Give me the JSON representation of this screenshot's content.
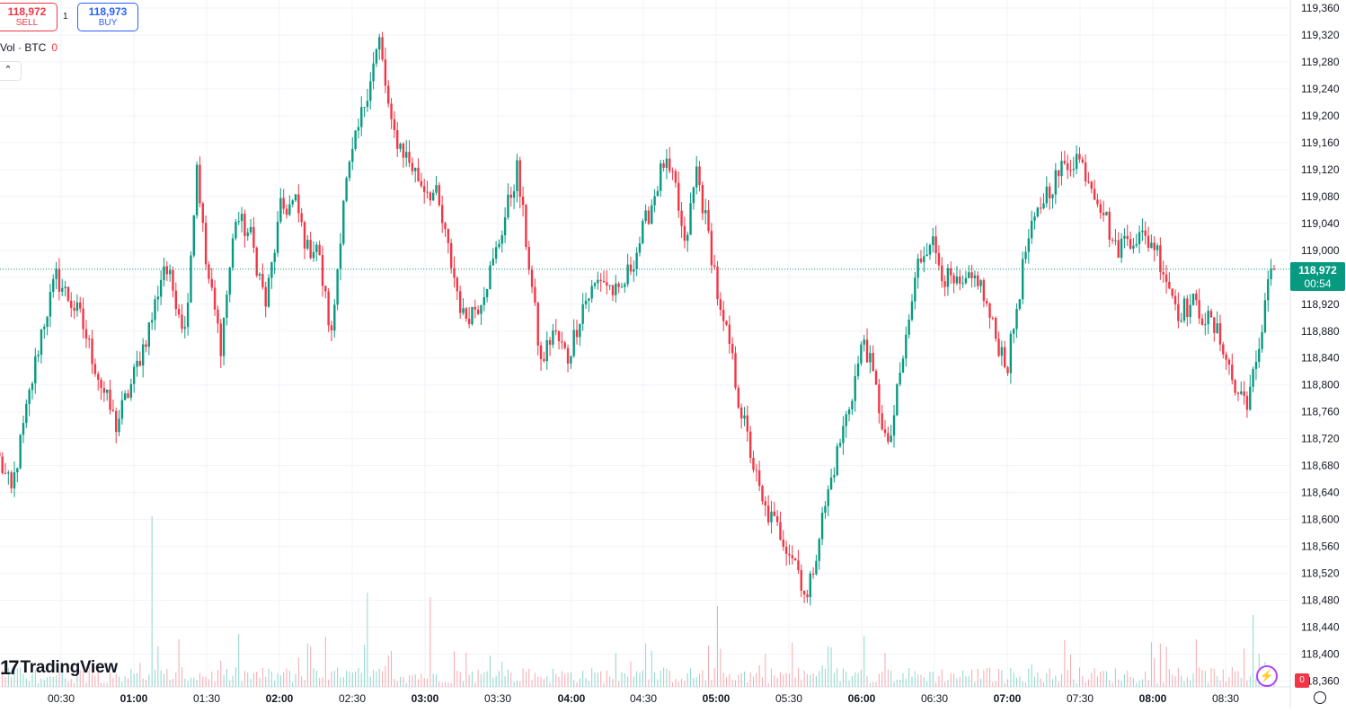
{
  "trade": {
    "sell_price": "118,972",
    "sell_label": "SELL",
    "buy_price": "118,973",
    "buy_label": "BUY",
    "spread": "1"
  },
  "volume_legend": {
    "label": "Vol · BTC",
    "value": "0"
  },
  "last_price": {
    "price": "118,972",
    "countdown": "00:54"
  },
  "branding": {
    "logo_text": "TradingView"
  },
  "volume_badge": "0",
  "colors": {
    "up": "#089981",
    "down": "#f23645",
    "up_volume": "#8fd6cc",
    "down_volume": "#f7a8ae",
    "grid": "#f0f3fa"
  },
  "chart_data": {
    "type": "candlestick",
    "interval": "1 minute",
    "y_axis_labels": [
      "119,360",
      "119,320",
      "119,280",
      "119,240",
      "119,200",
      "119,160",
      "119,120",
      "119,080",
      "119,040",
      "119,000",
      "118,960",
      "118,920",
      "118,880",
      "118,840",
      "118,800",
      "118,760",
      "118,720",
      "118,680",
      "118,640",
      "118,600",
      "118,560",
      "118,520",
      "118,480",
      "118,440",
      "118,400",
      "118,360"
    ],
    "ylim": [
      118360,
      119360
    ],
    "x_axis_labels": [
      {
        "label": "00:30",
        "bold": false
      },
      {
        "label": "01:00",
        "bold": true
      },
      {
        "label": "01:30",
        "bold": false
      },
      {
        "label": "02:00",
        "bold": true
      },
      {
        "label": "02:30",
        "bold": false
      },
      {
        "label": "03:00",
        "bold": true
      },
      {
        "label": "03:30",
        "bold": false
      },
      {
        "label": "04:00",
        "bold": true
      },
      {
        "label": "04:30",
        "bold": false
      },
      {
        "label": "05:00",
        "bold": true
      },
      {
        "label": "05:30",
        "bold": false
      },
      {
        "label": "06:00",
        "bold": true
      },
      {
        "label": "06:30",
        "bold": false
      },
      {
        "label": "07:00",
        "bold": true
      },
      {
        "label": "07:30",
        "bold": false
      },
      {
        "label": "08:00",
        "bold": true
      },
      {
        "label": "08:30",
        "bold": false
      }
    ],
    "last_price": 118972,
    "price_path": [
      [
        0,
        118700
      ],
      [
        5,
        118640
      ],
      [
        10,
        118760
      ],
      [
        15,
        118880
      ],
      [
        20,
        118960
      ],
      [
        28,
        118900
      ],
      [
        35,
        118800
      ],
      [
        40,
        118740
      ],
      [
        45,
        118800
      ],
      [
        52,
        118900
      ],
      [
        56,
        118980
      ],
      [
        60,
        118930
      ],
      [
        63,
        118880
      ],
      [
        66,
        119060
      ],
      [
        67,
        119130
      ],
      [
        70,
        118980
      ],
      [
        75,
        118860
      ],
      [
        80,
        119050
      ],
      [
        85,
        119020
      ],
      [
        90,
        118920
      ],
      [
        95,
        119060
      ],
      [
        100,
        119070
      ],
      [
        104,
        119000
      ],
      [
        107,
        119010
      ],
      [
        112,
        118870
      ],
      [
        116,
        119080
      ],
      [
        121,
        119180
      ],
      [
        125,
        119260
      ],
      [
        128,
        119310
      ],
      [
        132,
        119180
      ],
      [
        137,
        119140
      ],
      [
        142,
        119100
      ],
      [
        147,
        119080
      ],
      [
        151,
        119000
      ],
      [
        156,
        118900
      ],
      [
        161,
        118920
      ],
      [
        166,
        118980
      ],
      [
        170,
        119050
      ],
      [
        174,
        119120
      ],
      [
        178,
        118980
      ],
      [
        182,
        118830
      ],
      [
        186,
        118880
      ],
      [
        191,
        118840
      ],
      [
        196,
        118920
      ],
      [
        202,
        118960
      ],
      [
        208,
        118930
      ],
      [
        214,
        119000
      ],
      [
        219,
        119070
      ],
      [
        223,
        119130
      ],
      [
        227,
        119090
      ],
      [
        230,
        119000
      ],
      [
        234,
        119120
      ],
      [
        240,
        118970
      ],
      [
        242,
        118900
      ],
      [
        245,
        118860
      ],
      [
        248,
        118780
      ],
      [
        252,
        118700
      ],
      [
        256,
        118620
      ],
      [
        262,
        118580
      ],
      [
        267,
        118540
      ],
      [
        271,
        118480
      ],
      [
        275,
        118580
      ],
      [
        280,
        118680
      ],
      [
        285,
        118770
      ],
      [
        290,
        118870
      ],
      [
        294,
        118790
      ],
      [
        298,
        118700
      ],
      [
        303,
        118840
      ],
      [
        308,
        118980
      ],
      [
        312,
        119020
      ],
      [
        317,
        118960
      ],
      [
        322,
        118940
      ],
      [
        328,
        118960
      ],
      [
        334,
        118870
      ],
      [
        338,
        118830
      ],
      [
        344,
        119000
      ],
      [
        350,
        119080
      ],
      [
        356,
        119120
      ],
      [
        361,
        119140
      ],
      [
        365,
        119110
      ],
      [
        370,
        119060
      ],
      [
        374,
        119000
      ],
      [
        378,
        119020
      ],
      [
        382,
        119020
      ],
      [
        387,
        119010
      ],
      [
        391,
        118960
      ],
      [
        395,
        118910
      ],
      [
        400,
        118920
      ],
      [
        406,
        118890
      ],
      [
        410,
        118860
      ],
      [
        414,
        118790
      ],
      [
        418,
        118780
      ],
      [
        422,
        118840
      ],
      [
        425,
        118970
      ],
      [
        427,
        118972
      ]
    ],
    "volume_note": "per-candle volume bars along the bottom; largest spikes near 01:05, 02:40, 05:05 and 08:45"
  }
}
